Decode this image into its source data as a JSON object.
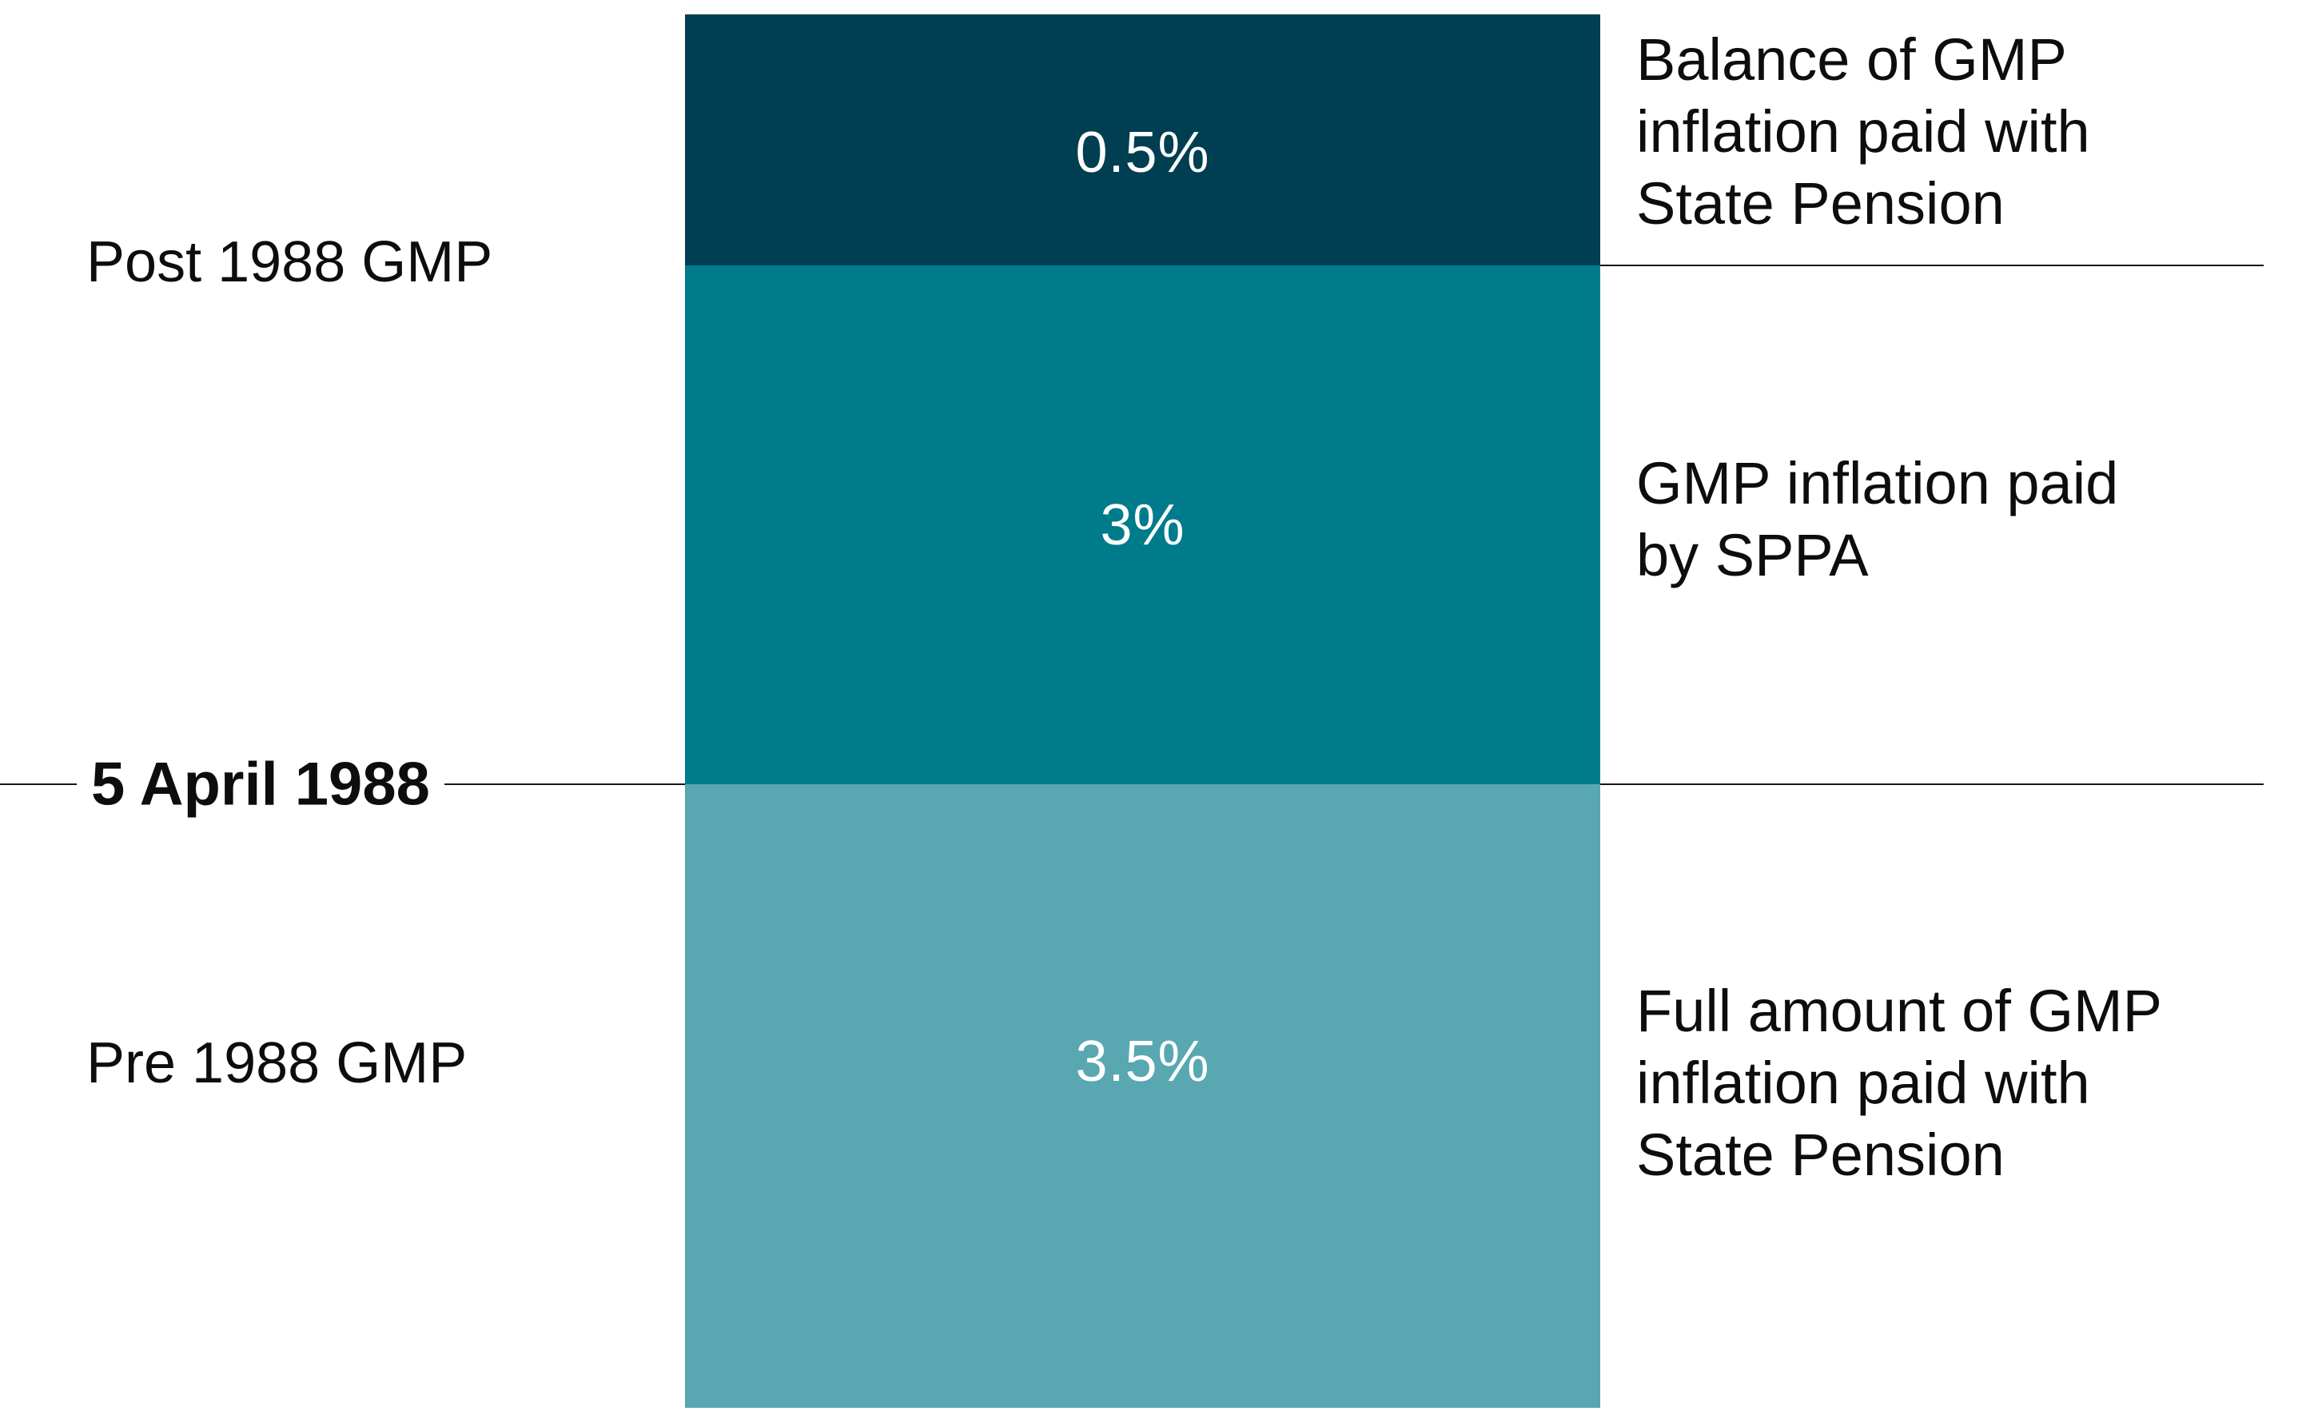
{
  "chart_data": {
    "type": "bar",
    "subtype": "single-stacked-column",
    "title": "",
    "legend_position": "right",
    "axis": {
      "left_labels": [
        "Post 1988 GMP",
        "5 April 1988",
        "Pre 1988 GMP"
      ],
      "divider_label": "5 April 1988"
    },
    "bar": {
      "segments": [
        {
          "value_label": "0.5%",
          "value_pct": 0.5,
          "color": "#003e52",
          "era": "Post 1988 GMP",
          "description": "Balance of GMP inflation paid with State Pension"
        },
        {
          "value_label": "3%",
          "value_pct": 3,
          "color": "#007b8b",
          "era": "Post 1988 GMP",
          "description": "GMP inflation paid by SPPA"
        },
        {
          "value_label": "3.5%",
          "value_pct": 3.5,
          "color": "#58a7b1",
          "era": "Pre 1988 GMP",
          "description": "Full amount of GMP inflation paid with State Pension"
        }
      ]
    }
  },
  "left_labels": {
    "post_1988": "Post 1988 GMP",
    "divider_date": "5 April 1988",
    "pre_1988": "Pre 1988 GMP"
  },
  "right_labels": [
    {
      "lines": [
        "Balance of GMP",
        "inflation paid with",
        "State Pension"
      ]
    },
    {
      "lines": [
        "GMP inflation paid",
        "by SPPA"
      ]
    },
    {
      "lines": [
        "Full amount of GMP",
        "inflation paid with",
        "State Pension"
      ]
    }
  ],
  "colors": {
    "background": "#ffffff",
    "segment_dark": "#003e52",
    "segment_mid": "#007b8b",
    "segment_light": "#58a7b1",
    "line": "#161616",
    "text": "#0d0d0d",
    "segment_value_text": "#ffffff"
  }
}
